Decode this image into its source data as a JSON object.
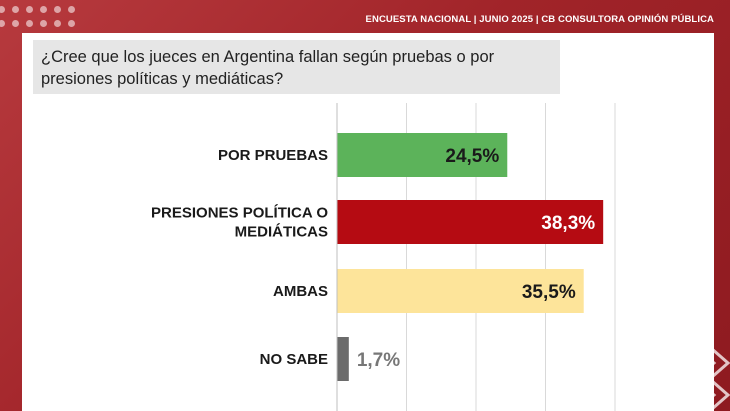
{
  "header": {
    "title": "ENCUESTA NACIONAL | JUNIO 2025 | CB CONSULTORA OPINIÓN PÚBLICA"
  },
  "question": "¿Cree que los jueces en Argentina fallan según pruebas o por presiones políticas y mediáticas?",
  "colors": {
    "frame": "#a4262c",
    "por_pruebas": "#5cb35a",
    "presiones": "#b50b12",
    "ambas": "#fde49a",
    "no_sabe": "#6b6b6b",
    "gridline": "#d9d9d9"
  },
  "chart_data": {
    "type": "bar",
    "orientation": "horizontal",
    "categories": [
      "POR PRUEBAS",
      "PRESIONES POLÍTICA O MEDIÁTICAS",
      "AMBAS",
      "NO SABE"
    ],
    "category_lines": [
      [
        "POR PRUEBAS"
      ],
      [
        "PRESIONES POLÍTICA O",
        "MEDIÁTICAS"
      ],
      [
        "AMBAS"
      ],
      [
        "NO SABE"
      ]
    ],
    "values": [
      24.5,
      38.3,
      35.5,
      1.7
    ],
    "value_labels": [
      "24,5%",
      "38,3%",
      "35,5%",
      "1,7%"
    ],
    "bar_colors": [
      "#5cb35a",
      "#b50b12",
      "#fde49a",
      "#6b6b6b"
    ],
    "label_colors": [
      "#1a1a1a",
      "#ffffff",
      "#1a1a1a",
      "#777777"
    ],
    "xlim": [
      0,
      40
    ],
    "grid": true,
    "title": "",
    "xlabel": "",
    "ylabel": ""
  }
}
